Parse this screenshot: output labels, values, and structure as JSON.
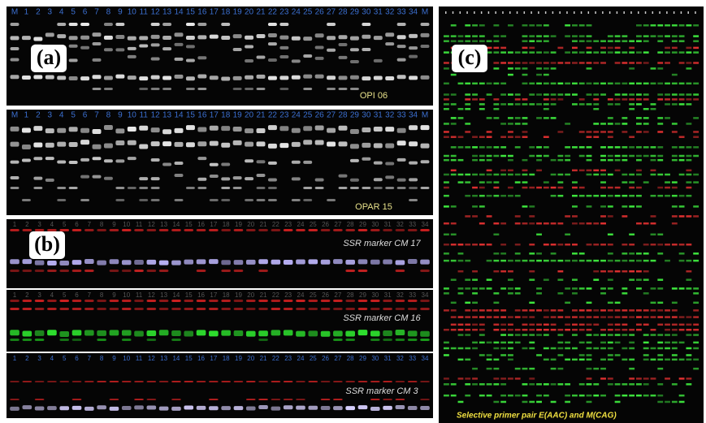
{
  "panel_a": {
    "label": "(a)",
    "gels": [
      {
        "lanes": [
          "M",
          "1",
          "2",
          "3",
          "4",
          "5",
          "6",
          "7",
          "8",
          "9",
          "10",
          "11",
          "12",
          "13",
          "14",
          "15",
          "16",
          "17",
          "18",
          "19",
          "20",
          "21",
          "22",
          "23",
          "24",
          "25",
          "26",
          "27",
          "28",
          "29",
          "30",
          "31",
          "32",
          "33",
          "34",
          "M"
        ],
        "marker": "OPI 06"
      },
      {
        "lanes": [
          "M",
          "1",
          "2",
          "3",
          "4",
          "5",
          "6",
          "7",
          "8",
          "9",
          "10",
          "11",
          "12",
          "13",
          "14",
          "15",
          "16",
          "17",
          "18",
          "19",
          "20",
          "21",
          "22",
          "23",
          "24",
          "25",
          "26",
          "27",
          "28",
          "29",
          "30",
          "31",
          "32",
          "33",
          "34",
          "M"
        ],
        "marker": "OPAR 15"
      }
    ]
  },
  "panel_b": {
    "label": "(b)",
    "gels": [
      {
        "lanes": [
          "1",
          "2",
          "3",
          "4",
          "5",
          "6",
          "7",
          "8",
          "9",
          "10",
          "11",
          "12",
          "13",
          "14",
          "15",
          "16",
          "17",
          "18",
          "19",
          "20",
          "21",
          "22",
          "23",
          "24",
          "25",
          "26",
          "27",
          "28",
          "29",
          "30",
          "31",
          "32",
          "33",
          "34"
        ],
        "marker": "SSR marker CM 17"
      },
      {
        "lanes": [
          "1",
          "2",
          "3",
          "4",
          "5",
          "6",
          "7",
          "8",
          "9",
          "10",
          "11",
          "12",
          "13",
          "14",
          "15",
          "16",
          "17",
          "18",
          "19",
          "20",
          "21",
          "22",
          "23",
          "24",
          "25",
          "26",
          "27",
          "28",
          "29",
          "30",
          "31",
          "32",
          "33",
          "34"
        ],
        "marker": "SSR marker CM 16"
      },
      {
        "lanes": [
          "1",
          "2",
          "3",
          "4",
          "5",
          "6",
          "7",
          "8",
          "9",
          "10",
          "11",
          "12",
          "13",
          "14",
          "15",
          "16",
          "17",
          "18",
          "19",
          "20",
          "21",
          "22",
          "23",
          "24",
          "25",
          "26",
          "27",
          "28",
          "29",
          "30",
          "31",
          "32",
          "33",
          "34"
        ],
        "marker": "SSR marker CM 3"
      }
    ]
  },
  "panel_c": {
    "label": "(c)",
    "caption": "Selective primer pair  E(AAC) and M(CAG)"
  }
}
